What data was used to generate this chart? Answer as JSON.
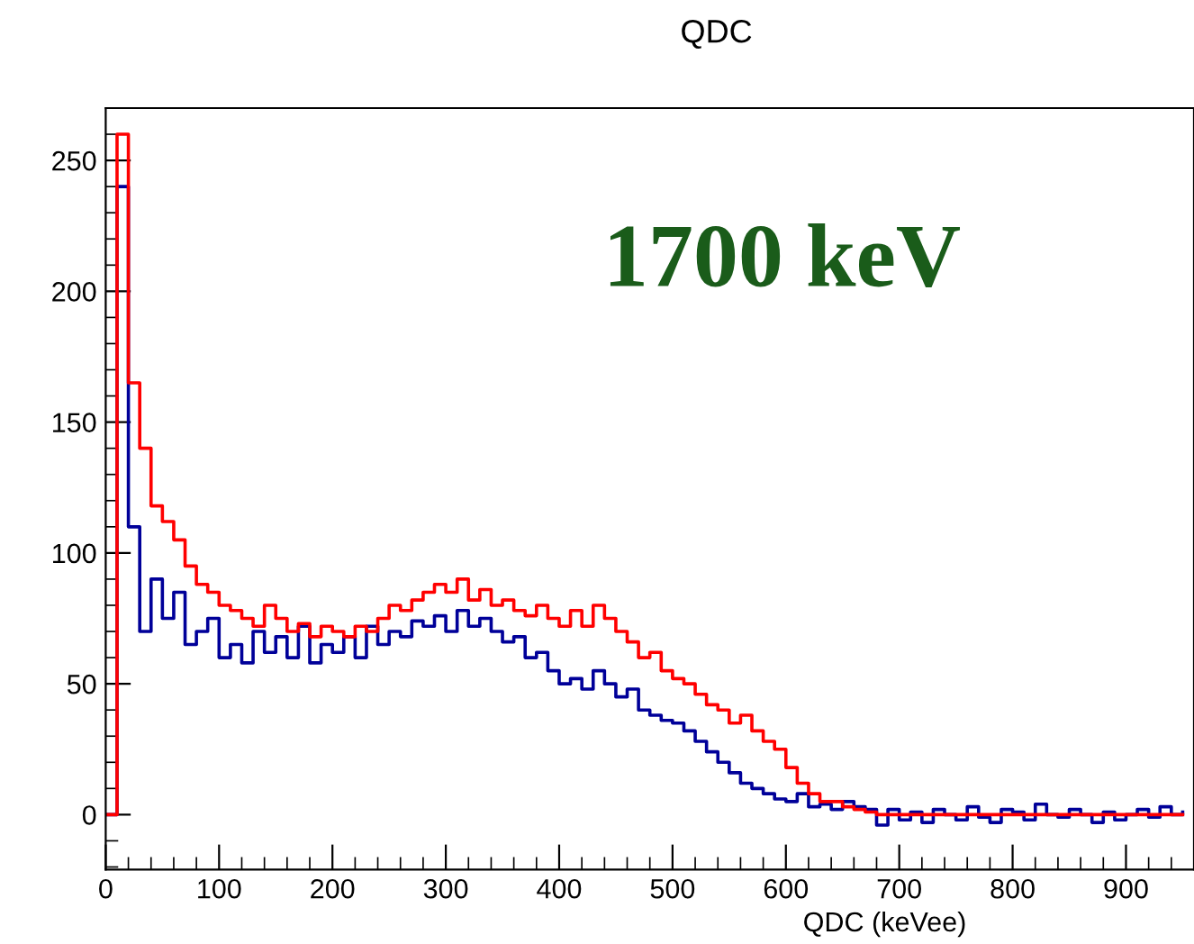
{
  "chart_data": {
    "type": "step",
    "title": "QDC",
    "xlabel": "QDC (keVee)",
    "annotations": [
      "1700 keV"
    ],
    "x": [
      0,
      10,
      20,
      30,
      40,
      50,
      60,
      70,
      80,
      90,
      100,
      110,
      120,
      130,
      140,
      150,
      160,
      170,
      180,
      190,
      200,
      210,
      220,
      230,
      240,
      250,
      260,
      270,
      280,
      290,
      300,
      310,
      320,
      330,
      340,
      350,
      360,
      370,
      380,
      390,
      400,
      410,
      420,
      430,
      440,
      450,
      460,
      470,
      480,
      490,
      500,
      510,
      520,
      530,
      540,
      550,
      560,
      570,
      580,
      590,
      600,
      610,
      620,
      630,
      640,
      650,
      660,
      670,
      680,
      690,
      700,
      710,
      720,
      730,
      740,
      750,
      760,
      770,
      780,
      790,
      800,
      810,
      820,
      830,
      840,
      850,
      860,
      870,
      880,
      890,
      900,
      910,
      920,
      930,
      940,
      950
    ],
    "series": [
      {
        "color": "#000099",
        "values": [
          0,
          240,
          110,
          70,
          90,
          75,
          85,
          65,
          70,
          75,
          60,
          65,
          58,
          70,
          62,
          68,
          60,
          72,
          58,
          65,
          62,
          68,
          60,
          72,
          65,
          70,
          68,
          74,
          72,
          76,
          70,
          78,
          72,
          75,
          70,
          66,
          68,
          60,
          62,
          55,
          50,
          52,
          48,
          55,
          50,
          45,
          48,
          40,
          38,
          36,
          35,
          32,
          28,
          24,
          20,
          16,
          12,
          10,
          8,
          6,
          5,
          8,
          3,
          4,
          2,
          5,
          3,
          2,
          -4,
          2,
          -2,
          1,
          -3,
          2,
          0,
          -2,
          3,
          -1,
          -3,
          2,
          1,
          -2,
          4,
          0,
          -1,
          2,
          0,
          -3,
          1,
          -2,
          0,
          2,
          -1,
          3,
          0,
          1
        ]
      },
      {
        "color": "#ff0000",
        "values": [
          0,
          260,
          165,
          140,
          118,
          112,
          105,
          95,
          88,
          85,
          80,
          78,
          75,
          72,
          80,
          75,
          70,
          73,
          68,
          72,
          70,
          68,
          72,
          70,
          75,
          80,
          78,
          82,
          85,
          88,
          85,
          90,
          82,
          86,
          80,
          82,
          78,
          76,
          80,
          75,
          72,
          78,
          72,
          80,
          75,
          70,
          66,
          60,
          62,
          55,
          52,
          50,
          46,
          42,
          40,
          35,
          38,
          32,
          28,
          25,
          18,
          12,
          8,
          5,
          5,
          3,
          2,
          1,
          0,
          0,
          0,
          0,
          0,
          0,
          0,
          0,
          0,
          0,
          0,
          0,
          0,
          0,
          0,
          0,
          0,
          0,
          0,
          0,
          0,
          0,
          0,
          0,
          0,
          0,
          0,
          0
        ]
      }
    ],
    "xlim": [
      0,
      960
    ],
    "ylim": [
      -21,
      270
    ],
    "xticks": [
      0,
      100,
      200,
      300,
      400,
      500,
      600,
      700,
      800,
      900
    ],
    "yticks": [
      0,
      50,
      100,
      150,
      200,
      250
    ],
    "grid": false,
    "legend": false
  }
}
